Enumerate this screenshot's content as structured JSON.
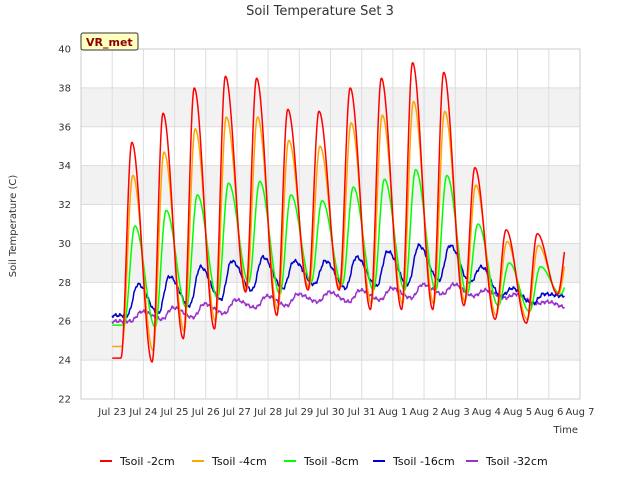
{
  "chart_data": {
    "type": "line",
    "title": "Soil Temperature Set 3",
    "xlabel": "Time",
    "ylabel": "Soil Temperature (C)",
    "ylim": [
      22,
      40
    ],
    "yticks": [
      22,
      24,
      26,
      28,
      30,
      32,
      34,
      36,
      38,
      40
    ],
    "xlim": [
      "2023-07-22",
      "2023-08-07"
    ],
    "xtick_labels": [
      "Jul 23",
      "Jul 24",
      "Jul 25",
      "Jul 26",
      "Jul 27",
      "Jul 28",
      "Jul 29",
      "Jul 30",
      "Jul 31",
      "Aug 1",
      "Aug 2",
      "Aug 3",
      "Aug 4",
      "Aug 5",
      "Aug 6",
      "Aug 7"
    ],
    "grid": true,
    "legend_position": "bottom",
    "badge": "VR_met",
    "day_labels": [
      "Jul 23",
      "Jul 24",
      "Jul 25",
      "Jul 26",
      "Jul 27",
      "Jul 28",
      "Jul 29",
      "Jul 30",
      "Jul 31",
      "Aug 1",
      "Aug 2",
      "Aug 3",
      "Aug 4",
      "Aug 5",
      "Aug 6"
    ],
    "series": [
      {
        "name": "Tsoil -2cm",
        "color": "#ff0000",
        "daily_min": [
          24.1,
          23.9,
          25.1,
          25.6,
          27.5,
          26.3,
          27.6,
          27.6,
          26.6,
          26.6,
          26.6,
          26.8,
          26.1,
          25.9,
          27.4
        ],
        "daily_max": [
          35.2,
          36.7,
          38.0,
          38.6,
          38.5,
          36.9,
          36.8,
          38.0,
          38.5,
          39.3,
          38.8,
          33.9,
          30.7,
          30.5,
          30.5
        ]
      },
      {
        "name": "Tsoil -4cm",
        "color": "#ffa500",
        "daily_min": [
          24.7,
          24.5,
          25.5,
          26.0,
          27.6,
          26.6,
          27.7,
          27.7,
          26.9,
          26.9,
          26.9,
          27.0,
          26.3,
          26.1,
          27.4
        ],
        "daily_max": [
          33.5,
          34.7,
          35.9,
          36.5,
          36.5,
          35.3,
          35.0,
          36.2,
          36.6,
          37.3,
          36.8,
          33.0,
          30.1,
          29.9,
          29.9
        ]
      },
      {
        "name": "Tsoil -8cm",
        "color": "#00ff00",
        "daily_min": [
          25.8,
          25.7,
          26.7,
          27.2,
          28.0,
          27.4,
          28.0,
          27.9,
          27.6,
          27.6,
          27.6,
          27.4,
          26.8,
          26.5,
          27.4
        ],
        "daily_max": [
          30.9,
          31.7,
          32.5,
          33.1,
          33.2,
          32.5,
          32.2,
          32.9,
          33.3,
          33.8,
          33.5,
          31.0,
          29.0,
          28.8,
          28.7
        ]
      },
      {
        "name": "Tsoil -16cm",
        "color": "#0000cc",
        "daily_min": [
          26.3,
          26.4,
          26.8,
          27.1,
          27.6,
          27.7,
          27.9,
          27.7,
          27.8,
          27.9,
          28.1,
          28.0,
          27.3,
          26.9,
          27.3
        ],
        "daily_max": [
          27.9,
          28.3,
          28.8,
          29.1,
          29.3,
          29.1,
          29.1,
          29.3,
          29.6,
          29.9,
          29.9,
          28.8,
          27.7,
          27.4,
          27.4
        ]
      },
      {
        "name": "Tsoil -32cm",
        "color": "#9932cc",
        "daily_min": [
          26.0,
          26.1,
          26.2,
          26.4,
          26.7,
          26.8,
          27.0,
          27.0,
          27.1,
          27.2,
          27.4,
          27.3,
          27.2,
          26.9,
          26.7
        ],
        "daily_max": [
          26.5,
          26.7,
          26.9,
          27.1,
          27.3,
          27.4,
          27.5,
          27.6,
          27.7,
          27.9,
          27.9,
          27.6,
          27.4,
          27.0,
          26.8
        ]
      }
    ]
  }
}
